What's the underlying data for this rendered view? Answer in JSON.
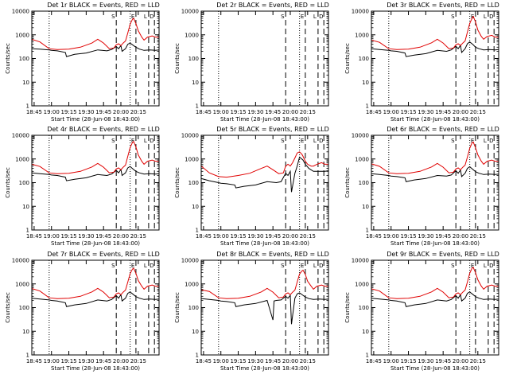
{
  "common": {
    "xlabel": "Start Time (28-Jun-08 18:43:00)",
    "ylabel": "Counts/sec",
    "x_ticks": [
      "18:45",
      "19:00",
      "19:15",
      "19:30",
      "19:45",
      "20:00",
      "20:15"
    ],
    "x_tick_minutes": [
      45,
      60,
      75,
      90,
      105,
      120,
      135
    ],
    "xlim_minutes": [
      43,
      153
    ],
    "y_ticks": [
      "1",
      "10",
      "100",
      "1000",
      "10000"
    ],
    "ylim": [
      1,
      10000
    ],
    "ylog": true,
    "markers": [
      {
        "minute": 58,
        "style": "dotted",
        "label": ""
      },
      {
        "minute": 116,
        "style": "dashed",
        "label": "S"
      },
      {
        "minute": 128,
        "style": "dotted",
        "label": ""
      },
      {
        "minute": 133,
        "style": "dashed",
        "label": "E"
      },
      {
        "minute": 144,
        "style": "dashed",
        "label": "L"
      },
      {
        "minute": 149,
        "style": "dashed",
        "label": "D"
      }
    ],
    "colors": {
      "events": "#000000",
      "lld": "#e00000"
    }
  },
  "chart_data": [
    {
      "type": "line",
      "title": "Det 1r BLACK = Events, RED = LLD",
      "series": [
        {
          "name": "Events",
          "x": [
            43,
            50,
            58,
            60,
            65,
            72,
            73,
            80,
            90,
            100,
            108,
            112,
            116,
            118,
            120,
            121,
            124,
            126,
            128,
            131,
            133,
            136,
            140,
            145,
            150,
            153
          ],
          "y": [
            260,
            250,
            230,
            220,
            210,
            180,
            120,
            150,
            170,
            230,
            210,
            240,
            320,
            260,
            350,
            200,
            260,
            400,
            450,
            350,
            300,
            250,
            220,
            230,
            220,
            230
          ]
        },
        {
          "name": "LLD",
          "x": [
            43,
            50,
            58,
            65,
            75,
            85,
            95,
            100,
            105,
            110,
            114,
            116,
            118,
            120,
            122,
            124,
            126,
            128,
            130,
            131,
            133,
            135,
            138,
            140,
            143,
            147,
            150,
            153
          ],
          "y": [
            650,
            500,
            260,
            240,
            250,
            300,
            450,
            650,
            450,
            260,
            280,
            380,
            420,
            350,
            450,
            550,
            1200,
            2800,
            4500,
            5000,
            3000,
            1500,
            800,
            600,
            800,
            900,
            800,
            800
          ]
        }
      ]
    },
    {
      "type": "line",
      "title": "Det 2r BLACK = Events, RED = LLD",
      "series": []
    },
    {
      "type": "line",
      "title": "Det 3r BLACK = Events, RED = LLD",
      "series": [
        {
          "name": "Events",
          "x": [
            43,
            50,
            58,
            60,
            65,
            72,
            73,
            80,
            90,
            100,
            108,
            112,
            116,
            118,
            120,
            121,
            124,
            126,
            128,
            131,
            133,
            136,
            140,
            145,
            150,
            153
          ],
          "y": [
            260,
            240,
            220,
            210,
            200,
            170,
            120,
            140,
            160,
            220,
            200,
            230,
            330,
            260,
            360,
            180,
            260,
            420,
            500,
            380,
            300,
            260,
            230,
            240,
            230,
            240
          ]
        },
        {
          "name": "LLD",
          "x": [
            43,
            50,
            58,
            65,
            75,
            85,
            95,
            100,
            105,
            110,
            114,
            116,
            118,
            120,
            122,
            124,
            126,
            128,
            130,
            131,
            133,
            135,
            138,
            140,
            143,
            147,
            150,
            153
          ],
          "y": [
            600,
            480,
            260,
            240,
            250,
            300,
            460,
            650,
            450,
            260,
            280,
            380,
            420,
            350,
            450,
            550,
            1300,
            3000,
            5000,
            6000,
            3500,
            1600,
            850,
            650,
            850,
            950,
            800,
            800
          ]
        }
      ]
    },
    {
      "type": "line",
      "title": "Det 4r BLACK = Events, RED = LLD",
      "series": [
        {
          "name": "Events",
          "x": [
            43,
            50,
            58,
            60,
            65,
            72,
            73,
            80,
            90,
            100,
            108,
            112,
            116,
            118,
            120,
            121,
            124,
            126,
            128,
            131,
            133,
            136,
            140,
            145,
            150,
            153
          ],
          "y": [
            260,
            240,
            220,
            210,
            200,
            170,
            120,
            140,
            160,
            220,
            200,
            230,
            330,
            260,
            360,
            200,
            260,
            420,
            480,
            360,
            300,
            260,
            230,
            240,
            230,
            240
          ]
        },
        {
          "name": "LLD",
          "x": [
            43,
            50,
            58,
            65,
            75,
            85,
            95,
            100,
            105,
            110,
            114,
            116,
            118,
            120,
            122,
            124,
            126,
            128,
            130,
            131,
            133,
            135,
            138,
            140,
            143,
            147,
            150,
            153
          ],
          "y": [
            600,
            480,
            260,
            240,
            250,
            300,
            460,
            650,
            450,
            260,
            280,
            380,
            420,
            350,
            450,
            550,
            1300,
            3000,
            5000,
            5500,
            3200,
            1500,
            800,
            600,
            800,
            900,
            800,
            800
          ]
        }
      ]
    },
    {
      "type": "line",
      "title": "Det 5r BLACK = Events, RED = LLD",
      "series": [
        {
          "name": "Events",
          "x": [
            43,
            50,
            58,
            60,
            65,
            72,
            73,
            80,
            90,
            100,
            108,
            112,
            116,
            118,
            120,
            121,
            124,
            126,
            128,
            131,
            133,
            136,
            140,
            145,
            150,
            153
          ],
          "y": [
            150,
            120,
            100,
            95,
            90,
            80,
            60,
            70,
            80,
            110,
            100,
            110,
            250,
            200,
            300,
            40,
            250,
            500,
            1200,
            900,
            600,
            400,
            300,
            300,
            300,
            320
          ]
        },
        {
          "name": "LLD",
          "x": [
            43,
            50,
            58,
            65,
            75,
            85,
            95,
            100,
            105,
            110,
            114,
            116,
            118,
            120,
            122,
            124,
            126,
            128,
            130,
            131,
            133,
            135,
            138,
            140,
            143,
            147,
            150,
            153
          ],
          "y": [
            500,
            260,
            180,
            170,
            200,
            250,
            400,
            500,
            350,
            240,
            260,
            500,
            600,
            500,
            700,
            1100,
            1800,
            2000,
            1600,
            1300,
            800,
            600,
            500,
            500,
            600,
            700,
            600,
            600
          ]
        }
      ]
    },
    {
      "type": "line",
      "title": "Det 6r BLACK = Events, RED = LLD",
      "series": [
        {
          "name": "Events",
          "x": [
            43,
            50,
            58,
            60,
            65,
            72,
            73,
            80,
            90,
            100,
            108,
            112,
            116,
            118,
            120,
            121,
            124,
            126,
            128,
            131,
            133,
            136,
            140,
            145,
            150,
            153
          ],
          "y": [
            240,
            220,
            200,
            190,
            180,
            160,
            110,
            130,
            150,
            200,
            190,
            210,
            320,
            250,
            340,
            180,
            250,
            400,
            470,
            350,
            290,
            250,
            220,
            230,
            220,
            230
          ]
        },
        {
          "name": "LLD",
          "x": [
            43,
            50,
            58,
            65,
            75,
            85,
            95,
            100,
            105,
            110,
            114,
            116,
            118,
            120,
            122,
            124,
            126,
            128,
            130,
            131,
            133,
            135,
            138,
            140,
            143,
            147,
            150,
            153
          ],
          "y": [
            620,
            490,
            260,
            240,
            250,
            300,
            460,
            650,
            450,
            260,
            280,
            380,
            420,
            350,
            450,
            550,
            1200,
            2800,
            4800,
            5200,
            3000,
            1500,
            800,
            600,
            800,
            900,
            800,
            800
          ]
        }
      ]
    },
    {
      "type": "line",
      "title": "Det 7r BLACK = Events, RED = LLD",
      "series": [
        {
          "name": "Events",
          "x": [
            43,
            50,
            58,
            60,
            65,
            72,
            73,
            80,
            90,
            100,
            108,
            112,
            116,
            118,
            120,
            121,
            124,
            126,
            128,
            131,
            133,
            136,
            140,
            145,
            150,
            153
          ],
          "y": [
            250,
            230,
            210,
            200,
            190,
            160,
            110,
            130,
            150,
            210,
            190,
            220,
            320,
            250,
            350,
            190,
            250,
            400,
            460,
            350,
            290,
            250,
            220,
            230,
            220,
            230
          ]
        },
        {
          "name": "LLD",
          "x": [
            43,
            50,
            58,
            65,
            75,
            85,
            95,
            100,
            105,
            110,
            114,
            116,
            118,
            120,
            122,
            124,
            126,
            128,
            130,
            131,
            133,
            135,
            138,
            140,
            143,
            147,
            150,
            153
          ],
          "y": [
            640,
            500,
            260,
            240,
            250,
            300,
            460,
            650,
            450,
            260,
            280,
            380,
            420,
            350,
            450,
            550,
            1200,
            2700,
            4200,
            4600,
            2800,
            1400,
            800,
            600,
            800,
            900,
            800,
            800
          ]
        }
      ]
    },
    {
      "type": "line",
      "title": "Det 8r BLACK = Events, RED = LLD",
      "series": [
        {
          "name": "Events",
          "x": [
            43,
            50,
            58,
            60,
            65,
            72,
            73,
            80,
            90,
            100,
            105,
            106,
            108,
            112,
            116,
            118,
            120,
            121,
            124,
            126,
            128,
            131,
            133,
            136,
            140,
            145,
            150,
            153
          ],
          "y": [
            240,
            220,
            200,
            190,
            180,
            160,
            110,
            130,
            150,
            200,
            30,
            190,
            200,
            210,
            300,
            250,
            330,
            20,
            250,
            380,
            420,
            330,
            280,
            240,
            220,
            230,
            220,
            230
          ]
        },
        {
          "name": "LLD",
          "x": [
            43,
            50,
            58,
            65,
            75,
            85,
            95,
            100,
            105,
            110,
            114,
            116,
            118,
            120,
            122,
            124,
            126,
            128,
            130,
            131,
            133,
            135,
            138,
            140,
            143,
            147,
            150,
            153
          ],
          "y": [
            560,
            480,
            260,
            240,
            250,
            300,
            460,
            650,
            450,
            260,
            280,
            380,
            420,
            350,
            450,
            550,
            1200,
            2600,
            3500,
            3800,
            2500,
            1300,
            800,
            600,
            800,
            900,
            800,
            800
          ]
        }
      ]
    },
    {
      "type": "line",
      "title": "Det 9r BLACK = Events, RED = LLD",
      "series": [
        {
          "name": "Events",
          "x": [
            43,
            50,
            58,
            60,
            65,
            72,
            73,
            80,
            90,
            100,
            108,
            112,
            116,
            118,
            120,
            121,
            124,
            126,
            128,
            131,
            133,
            136,
            140,
            145,
            150,
            153
          ],
          "y": [
            250,
            230,
            210,
            200,
            190,
            160,
            110,
            130,
            150,
            210,
            190,
            220,
            320,
            250,
            350,
            190,
            250,
            400,
            460,
            350,
            290,
            250,
            220,
            230,
            220,
            230
          ]
        },
        {
          "name": "LLD",
          "x": [
            43,
            50,
            58,
            65,
            75,
            85,
            95,
            100,
            105,
            110,
            114,
            116,
            118,
            120,
            122,
            124,
            126,
            128,
            130,
            131,
            133,
            135,
            138,
            140,
            143,
            147,
            150,
            153
          ],
          "y": [
            620,
            500,
            260,
            240,
            250,
            300,
            460,
            650,
            450,
            260,
            280,
            380,
            420,
            350,
            450,
            550,
            1200,
            2800,
            4600,
            5000,
            3000,
            1500,
            800,
            600,
            800,
            900,
            800,
            800
          ]
        }
      ]
    }
  ]
}
